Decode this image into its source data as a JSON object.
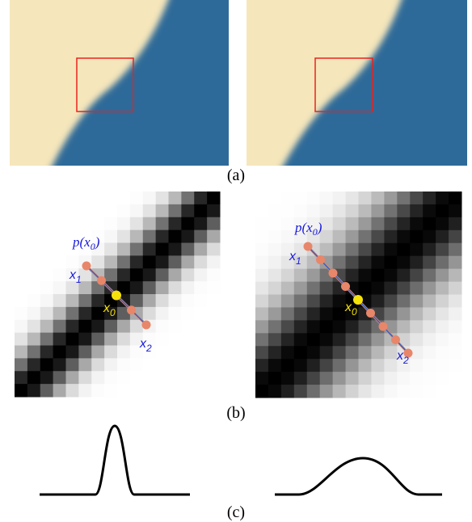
{
  "figure": {
    "panel_a": {
      "caption": "(a)"
    },
    "panel_b": {
      "caption": "(b)",
      "left": {
        "p": {
          "pre": "p(x",
          "sub": "0",
          "post": ")"
        },
        "x1": {
          "base": "x",
          "sub": "1"
        },
        "x0": {
          "base": "x",
          "sub": "0"
        },
        "x2": {
          "base": "x",
          "sub": "2"
        }
      },
      "right": {
        "p": {
          "pre": "p(x",
          "sub": "0",
          "post": ")"
        },
        "x1": {
          "base": "x",
          "sub": "1"
        },
        "x0": {
          "base": "x",
          "sub": "0"
        },
        "x2": {
          "base": "x",
          "sub": "2"
        }
      }
    },
    "panel_c": {
      "caption": "(c)"
    }
  }
}
